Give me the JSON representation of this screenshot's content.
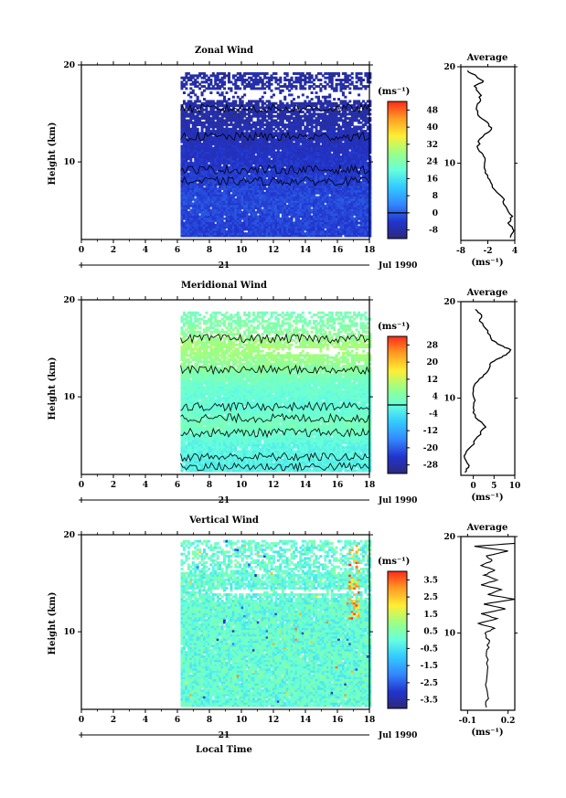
{
  "figure": {
    "x_axis_title": "Local Time",
    "date_label": "Jul 1990",
    "day_label": "21"
  },
  "chart_data": [
    {
      "type": "heatmap",
      "title": "Zonal Wind",
      "xlabel": "",
      "ylabel": "Height (km)",
      "x_ticks": [
        0,
        2,
        4,
        6,
        8,
        10,
        12,
        14,
        16,
        18
      ],
      "y_ticks": [
        10,
        20
      ],
      "xlim": [
        0,
        18
      ],
      "ylim": [
        2,
        20
      ],
      "data_x_range": [
        6.2,
        18
      ],
      "data_y_range": [
        2.3,
        19.2
      ],
      "colorbar": {
        "unit": "(ms⁻¹)",
        "ticks": [
          -8,
          0,
          8,
          16,
          24,
          32,
          40,
          48
        ],
        "min": -12,
        "max": 52,
        "contour_at": 0
      },
      "profile_by_height": [
        {
          "height": 3,
          "value": -3
        },
        {
          "height": 6,
          "value": -2
        },
        {
          "height": 9,
          "value": -4
        },
        {
          "height": 12,
          "value": -6
        },
        {
          "height": 15,
          "value": -8
        },
        {
          "height": 18,
          "value": -8
        }
      ]
    },
    {
      "type": "heatmap",
      "title": "Meridional Wind",
      "xlabel": "",
      "ylabel": "Height (km)",
      "x_ticks": [
        0,
        2,
        4,
        6,
        8,
        10,
        12,
        14,
        16,
        18
      ],
      "y_ticks": [
        10,
        20
      ],
      "xlim": [
        0,
        18
      ],
      "ylim": [
        2,
        20
      ],
      "data_x_range": [
        6.2,
        18
      ],
      "data_y_range": [
        2.3,
        18.8
      ],
      "colorbar": {
        "unit": "(ms⁻¹)",
        "ticks": [
          -28,
          -20,
          -12,
          -4,
          4,
          12,
          20,
          28
        ],
        "min": -32,
        "max": 32,
        "contour_at": 0
      },
      "profile_by_height": [
        {
          "height": 3,
          "value": -2
        },
        {
          "height": 5,
          "value": -1
        },
        {
          "height": 7,
          "value": 3
        },
        {
          "height": 9,
          "value": 0
        },
        {
          "height": 11,
          "value": 1
        },
        {
          "height": 13,
          "value": 6
        },
        {
          "height": 15,
          "value": 9
        },
        {
          "height": 17,
          "value": 5
        },
        {
          "height": 18.5,
          "value": 3
        }
      ]
    },
    {
      "type": "heatmap",
      "title": "Vertical Wind",
      "xlabel": "",
      "ylabel": "Height (km)",
      "x_ticks": [
        0,
        2,
        4,
        6,
        8,
        10,
        12,
        14,
        16,
        18
      ],
      "y_ticks": [
        10,
        20
      ],
      "xlim": [
        0,
        18
      ],
      "ylim": [
        2,
        20
      ],
      "data_x_range": [
        6.2,
        18
      ],
      "data_y_range": [
        2.3,
        19.3
      ],
      "colorbar": {
        "unit": "(ms⁻¹)",
        "ticks": [
          -3.5,
          -2.5,
          -1.5,
          -0.5,
          0.5,
          1.5,
          2.5,
          3.5
        ],
        "min": -4,
        "max": 4
      },
      "profile_by_height": [
        {
          "height": 3,
          "value": 0.05
        },
        {
          "height": 10,
          "value": 0.05
        },
        {
          "height": 16,
          "value": 0.05
        },
        {
          "height": 19,
          "value": 0.05
        }
      ]
    }
  ],
  "averages": [
    {
      "title": "Average",
      "unit": "(ms⁻¹)",
      "x_ticks": [
        "-8",
        "-2",
        "4"
      ],
      "x_tick_values": [
        -8,
        -2,
        4
      ],
      "xlim": [
        -8,
        4
      ],
      "y_ticks": [
        10,
        20
      ],
      "ylim": [
        2,
        20
      ],
      "profile": [
        [
          2.3,
          3.0
        ],
        [
          3.0,
          3.8
        ],
        [
          3.8,
          2.5
        ],
        [
          4.5,
          3.5
        ],
        [
          5.5,
          2.0
        ],
        [
          6.5,
          1.2
        ],
        [
          7.5,
          -1.0
        ],
        [
          8.5,
          -2.0
        ],
        [
          9.5,
          -2.8
        ],
        [
          10.5,
          -2.6
        ],
        [
          11.5,
          -4.2
        ],
        [
          12.5,
          -3.8
        ],
        [
          13.5,
          -1.2
        ],
        [
          14.2,
          -2.0
        ],
        [
          15.0,
          -4.2
        ],
        [
          15.8,
          -4.5
        ],
        [
          16.5,
          -3.6
        ],
        [
          17.2,
          -3.8
        ],
        [
          18.0,
          -5.0
        ],
        [
          18.5,
          -3.0
        ],
        [
          19.0,
          -4.5
        ],
        [
          19.6,
          -6.5
        ]
      ]
    },
    {
      "title": "Average",
      "unit": "(ms⁻¹)",
      "x_ticks": [
        "0",
        "5",
        "10"
      ],
      "x_tick_values": [
        0,
        5,
        10
      ],
      "xlim": [
        -3,
        10
      ],
      "y_ticks": [
        10,
        20
      ],
      "ylim": [
        2,
        20
      ],
      "profile": [
        [
          2.3,
          -2.0
        ],
        [
          3.0,
          -1.0
        ],
        [
          4.0,
          -2.2
        ],
        [
          5.0,
          -0.5
        ],
        [
          6.0,
          1.0
        ],
        [
          7.0,
          3.0
        ],
        [
          8.0,
          0.5
        ],
        [
          9.0,
          0.0
        ],
        [
          10.0,
          0.2
        ],
        [
          11.0,
          0.0
        ],
        [
          12.0,
          1.5
        ],
        [
          12.8,
          3.5
        ],
        [
          13.5,
          4.0
        ],
        [
          14.0,
          5.5
        ],
        [
          14.5,
          8.0
        ],
        [
          15.0,
          9.0
        ],
        [
          15.5,
          6.5
        ],
        [
          16.0,
          4.5
        ],
        [
          17.0,
          3.5
        ],
        [
          18.0,
          1.5
        ],
        [
          18.6,
          2.0
        ],
        [
          19.2,
          0.5
        ]
      ]
    },
    {
      "title": "Average",
      "unit": "(ms⁻¹)",
      "x_ticks": [
        "-0.1",
        "0.2"
      ],
      "x_tick_values": [
        -0.1,
        0.2
      ],
      "xlim": [
        -0.15,
        0.25
      ],
      "y_ticks": [
        10,
        20
      ],
      "ylim": [
        2,
        20
      ],
      "profile": [
        [
          2.3,
          0.04
        ],
        [
          3.5,
          0.05
        ],
        [
          5.0,
          0.04
        ],
        [
          6.5,
          0.05
        ],
        [
          8.0,
          0.04
        ],
        [
          9.0,
          0.06
        ],
        [
          10.0,
          0.03
        ],
        [
          10.5,
          0.1
        ],
        [
          11.0,
          -0.02
        ],
        [
          11.5,
          0.12
        ],
        [
          12.0,
          0.0
        ],
        [
          12.5,
          0.18
        ],
        [
          13.0,
          0.02
        ],
        [
          13.5,
          0.25
        ],
        [
          14.0,
          0.05
        ],
        [
          14.5,
          0.15
        ],
        [
          15.0,
          0.0
        ],
        [
          15.5,
          0.12
        ],
        [
          16.0,
          0.02
        ],
        [
          16.5,
          0.1
        ],
        [
          17.0,
          0.0
        ],
        [
          17.5,
          0.08
        ],
        [
          18.0,
          0.04
        ],
        [
          18.5,
          0.2
        ],
        [
          19.0,
          -0.05
        ],
        [
          19.3,
          0.25
        ]
      ]
    }
  ]
}
